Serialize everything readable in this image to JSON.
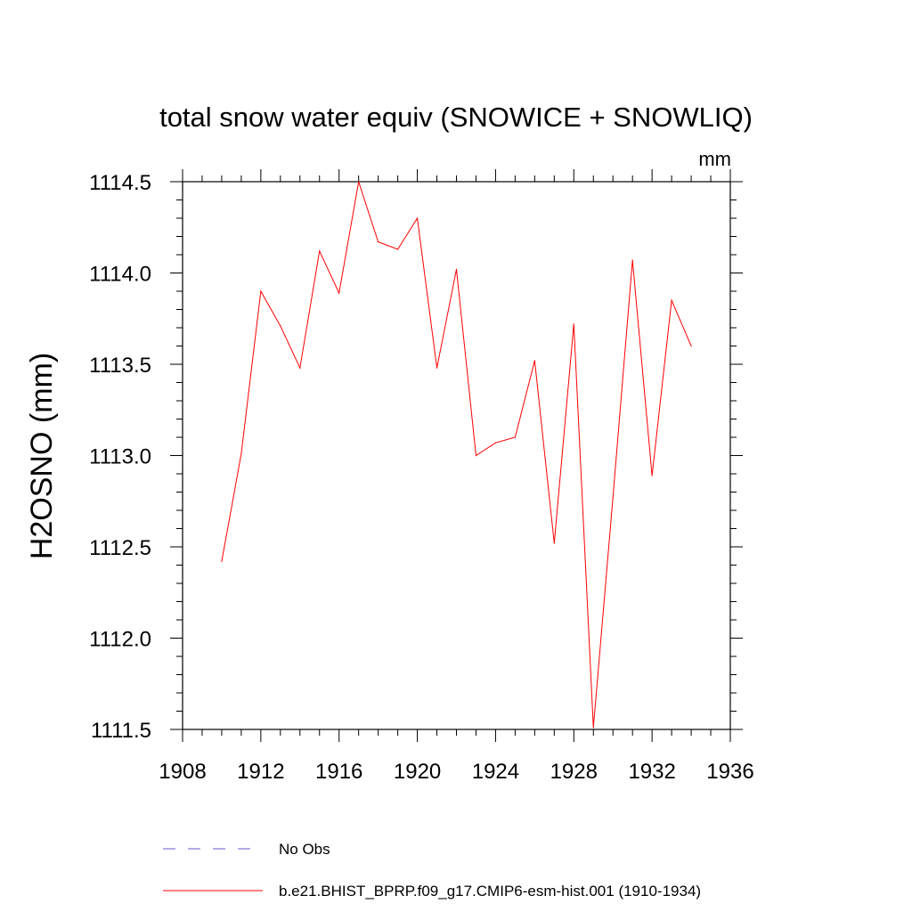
{
  "chart_data": {
    "type": "line",
    "title": "total snow water equiv (SNOWICE + SNOWLIQ)",
    "units": "mm",
    "xlabel": "",
    "ylabel": "H2OSNO  (mm)",
    "xlim": [
      1908,
      1936
    ],
    "ylim": [
      1111.5,
      1114.5
    ],
    "xticks": [
      "1908",
      "1912",
      "1916",
      "1920",
      "1924",
      "1928",
      "1932",
      "1936"
    ],
    "xtick_values": [
      1908,
      1912,
      1916,
      1920,
      1924,
      1928,
      1932,
      1936
    ],
    "yticks": [
      "1111.5",
      "1112.0",
      "1112.5",
      "1113.0",
      "1113.5",
      "1114.0",
      "1114.5"
    ],
    "ytick_values": [
      1111.5,
      1112.0,
      1112.5,
      1113.0,
      1113.5,
      1114.0,
      1114.5
    ],
    "grid": false,
    "legend_position": "bottom",
    "series": [
      {
        "name": "b.e21.BHIST_BPRP.f09_g17.CMIP6-esm-hist.001 (1910-1934)",
        "color": "#ff0000",
        "style": "solid",
        "x": [
          1910,
          1911,
          1912,
          1913,
          1914,
          1915,
          1916,
          1917,
          1918,
          1919,
          1920,
          1921,
          1922,
          1923,
          1924,
          1925,
          1926,
          1927,
          1928,
          1929,
          1930,
          1931,
          1932,
          1933,
          1934
        ],
        "values": [
          1112.42,
          1113.01,
          1113.9,
          1113.71,
          1113.48,
          1114.12,
          1113.89,
          1114.5,
          1114.17,
          1114.13,
          1114.3,
          1113.48,
          1114.02,
          1113.0,
          1113.07,
          1113.1,
          1113.52,
          1112.52,
          1113.72,
          1111.51,
          1112.77,
          1114.07,
          1112.89,
          1113.85,
          1113.6
        ]
      }
    ],
    "legend": [
      {
        "label": "No Obs",
        "color": "#6a5acd",
        "style": "dashed"
      },
      {
        "label": "b.e21.BHIST_BPRP.f09_g17.CMIP6-esm-hist.001 (1910-1934)",
        "color": "#ff0000",
        "style": "solid"
      }
    ]
  }
}
